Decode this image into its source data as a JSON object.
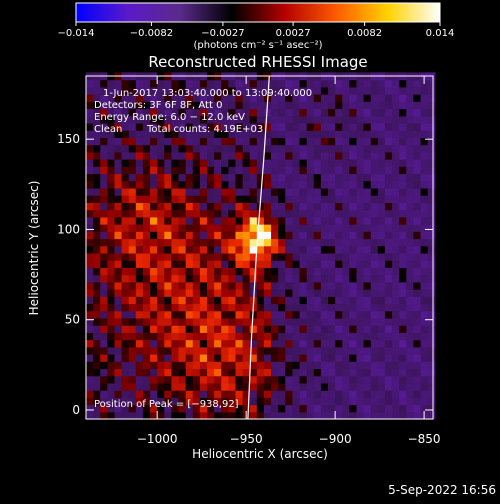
{
  "chart_data": {
    "type": "heatmap",
    "title": "Reconstructed RHESSI Image",
    "xlabel": "Heliocentric X (arcsec)",
    "ylabel": "Heliocentric Y (arcsec)",
    "xlim": [
      -1040,
      -845
    ],
    "ylim": [
      -5,
      185
    ],
    "x_ticks": [
      -1000,
      -950,
      -900,
      -850
    ],
    "x_tick_labels": [
      "−1000",
      "−950",
      "−900",
      "−850"
    ],
    "y_ticks": [
      0,
      50,
      100,
      150
    ],
    "y_tick_labels": [
      "0",
      "50",
      "100",
      "150"
    ],
    "colorbar": {
      "range": [
        -0.014,
        0.014
      ],
      "ticks": [
        -0.014,
        -0.0082,
        -0.0027,
        0.0027,
        0.0082,
        0.014
      ],
      "tick_labels": [
        "−0.014",
        "−0.0082",
        "−0.0027",
        "0.0027",
        "0.0082",
        "0.014"
      ],
      "unit_label": "(photons cm⁻² s⁻¹ asec⁻²)",
      "colors": [
        "#0000ff",
        "#5a1ac8",
        "#5a2a8a",
        "#000000",
        "#b30000",
        "#ff5a00",
        "#ffd200",
        "#ffffff"
      ]
    },
    "peak": {
      "x": -938,
      "y": 92,
      "value": 0.014
    },
    "limb_curve": [
      [
        -949,
        -5
      ],
      [
        -947,
        40
      ],
      [
        -944,
        90
      ],
      [
        -940,
        140
      ],
      [
        -937,
        185
      ]
    ],
    "emission_regions": [
      {
        "x": -943,
        "y": 95,
        "sigma": 9,
        "amp": 1.0
      },
      {
        "x": -990,
        "y": 70,
        "sigma": 40,
        "amp": 0.42
      },
      {
        "x": -960,
        "y": 25,
        "sigma": 25,
        "amp": 0.35
      },
      {
        "x": -1010,
        "y": 110,
        "sigma": 20,
        "amp": 0.25
      },
      {
        "x": -905,
        "y": 160,
        "sigma": 15,
        "amp": 0.18
      }
    ]
  },
  "annotations": {
    "time_range": "1-Jun-2017 13:03:40.000 to 13:09:40.000",
    "detectors": "Detectors: 3F 6F 8F, Att 0",
    "energy_range": "Energy Range: 6.0 − 12.0 keV",
    "clean_label": "Clean",
    "total_counts": "Total counts: 4.19E+03",
    "peak_position": "Position of Peak = [−938,92]"
  },
  "footer": {
    "timestamp": "5-Sep-2022 16:56"
  }
}
